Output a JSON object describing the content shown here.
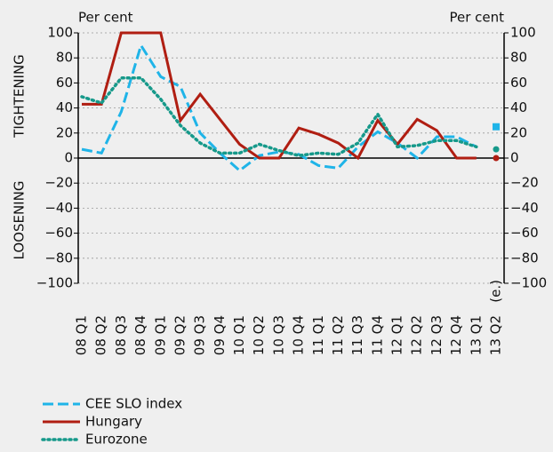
{
  "chart_data": {
    "type": "line",
    "left_axis_label": "Per cent",
    "right_axis_label": "Per cent",
    "upper_label": "TIGHTENING",
    "lower_label": "LOOSENING",
    "annotation": "(e.)",
    "categories": [
      "08 Q1",
      "08 Q2",
      "08 Q3",
      "08 Q4",
      "09 Q1",
      "09 Q2",
      "09 Q3",
      "09 Q4",
      "10 Q1",
      "10 Q2",
      "10 Q3",
      "10 Q4",
      "11 Q1",
      "11 Q2",
      "11 Q3",
      "11 Q4",
      "12 Q1",
      "12 Q2",
      "12 Q3",
      "12 Q4",
      "13 Q1",
      "13 Q2"
    ],
    "series": [
      {
        "name": "CEE SLO index",
        "color": "#1fb4e8",
        "dash": "dashed",
        "values": [
          7,
          4,
          37,
          90,
          65,
          57,
          20,
          4,
          -10,
          2,
          5,
          3,
          -6,
          -8,
          9,
          21,
          12,
          0,
          17,
          17,
          9,
          25
        ]
      },
      {
        "name": "Hungary",
        "color": "#b01e12",
        "dash": "solid",
        "values": [
          43,
          43,
          100,
          100,
          100,
          30,
          51,
          31,
          11,
          0,
          0,
          24,
          19,
          12,
          0,
          30,
          11,
          31,
          22,
          0,
          0,
          0
        ]
      },
      {
        "name": "Eurozone",
        "color": "#16998a",
        "dash": "dotted",
        "values": [
          49,
          44,
          64,
          64,
          47,
          26,
          12,
          4,
          4,
          11,
          6,
          2,
          4,
          3,
          12,
          35,
          9,
          10,
          14,
          14,
          9,
          7
        ]
      }
    ],
    "estimated_last": true,
    "ylim": [
      -100,
      100
    ],
    "yticks": [
      {
        "value": -100,
        "label": "−100"
      },
      {
        "value": -80,
        "label": "−80"
      },
      {
        "value": -60,
        "label": "−60"
      },
      {
        "value": -40,
        "label": "−40"
      },
      {
        "value": -20,
        "label": "−20"
      },
      0,
      20,
      40,
      60,
      80,
      100
    ],
    "y2lim": [
      -100,
      100
    ],
    "y2ticks": [
      {
        "value": -100,
        "label": "−100"
      },
      {
        "value": -80,
        "label": "−80"
      },
      {
        "value": -60,
        "label": "−60"
      },
      {
        "value": -40,
        "label": "−40"
      },
      {
        "value": -20,
        "label": "−20"
      },
      0,
      20,
      40,
      60,
      80,
      100
    ],
    "grid": true
  }
}
